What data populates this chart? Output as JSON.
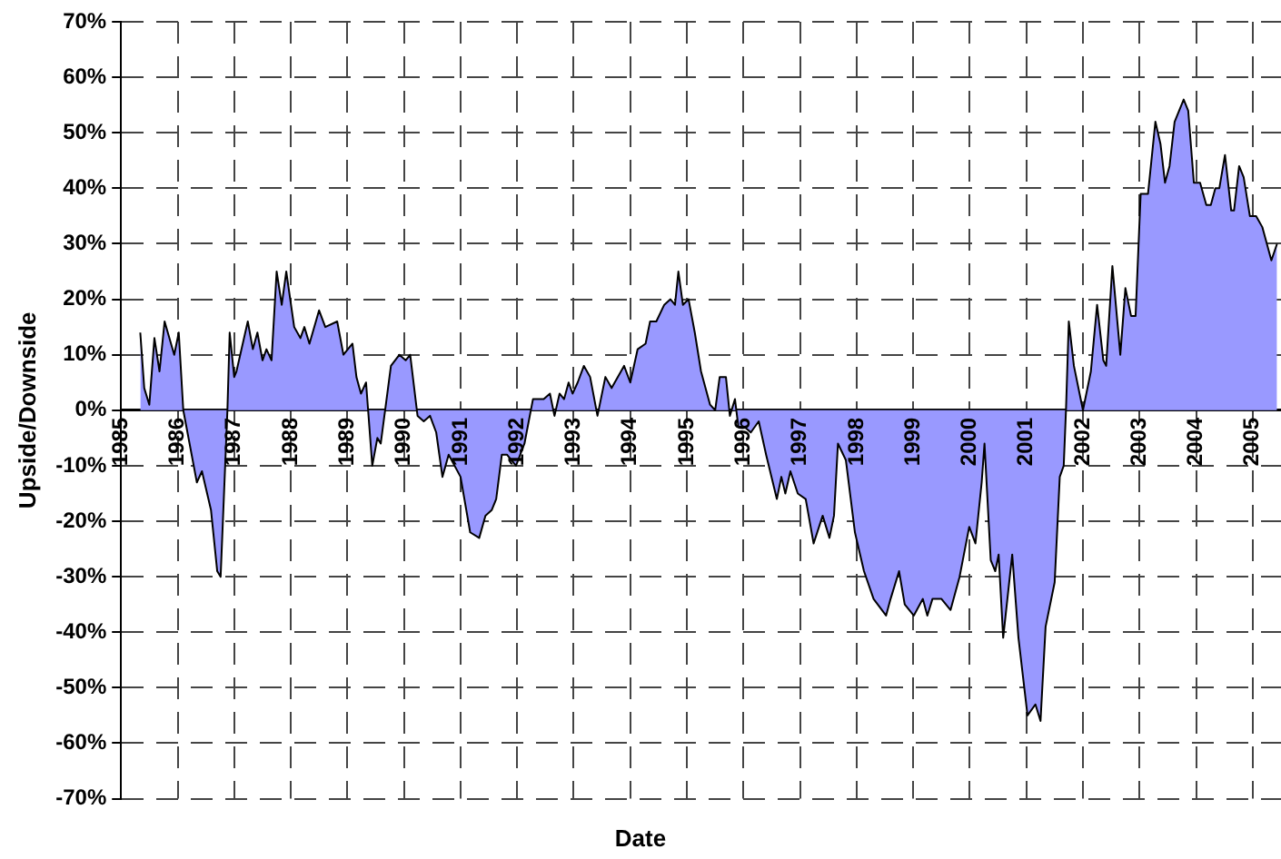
{
  "chart_data": {
    "type": "area",
    "xlabel": "Date",
    "ylabel": "Upside/Downside",
    "color": "#9999ff",
    "grid": true,
    "x": [
      1985.34,
      1985.41,
      1985.5,
      1985.59,
      1985.68,
      1985.77,
      1985.94,
      1986.02,
      1986.1,
      1986.34,
      1986.43,
      1986.59,
      1986.7,
      1986.76,
      1986.88,
      1986.92,
      1987,
      1987.04,
      1987.24,
      1987.33,
      1987.41,
      1987.5,
      1987.57,
      1987.66,
      1987.75,
      1987.84,
      1987.92,
      1988.06,
      1988.17,
      1988.24,
      1988.33,
      1988.5,
      1988.61,
      1988.82,
      1988.93,
      1989.09,
      1989.16,
      1989.24,
      1989.33,
      1989.44,
      1989.53,
      1989.59,
      1989.77,
      1989.92,
      1990.03,
      1990.11,
      1990.24,
      1990.35,
      1990.46,
      1990.57,
      1990.68,
      1990.79,
      1991,
      1991.17,
      1991.33,
      1991.44,
      1991.55,
      1991.63,
      1991.73,
      1991.82,
      1991.98,
      1992.13,
      1992.28,
      1992.36,
      1992.47,
      1992.58,
      1992.66,
      1992.75,
      1992.83,
      1992.91,
      1992.98,
      1993.07,
      1993.18,
      1993.29,
      1993.42,
      1993.56,
      1993.67,
      1993.89,
      1994,
      1994.13,
      1994.27,
      1994.35,
      1994.46,
      1994.6,
      1994.71,
      1994.79,
      1994.85,
      1994.93,
      1995.03,
      1995.14,
      1995.25,
      1995.41,
      1995.5,
      1995.58,
      1995.69,
      1995.76,
      1995.85,
      1995.91,
      1996.02,
      1996.13,
      1996.27,
      1996.4,
      1996.59,
      1996.67,
      1996.74,
      1996.83,
      1996.96,
      1997.1,
      1997.24,
      1997.4,
      1997.52,
      1997.6,
      1997.67,
      1997.81,
      1997.97,
      1998.13,
      1998.3,
      1998.52,
      1998.6,
      1998.75,
      1998.85,
      1999.01,
      1999.17,
      1999.25,
      1999.34,
      1999.5,
      1999.66,
      1999.82,
      1999.99,
      2000.1,
      2000.21,
      2000.26,
      2000.37,
      2000.45,
      2000.51,
      2000.59,
      2000.75,
      2000.86,
      2001.02,
      2001.16,
      2001.25,
      2001.34,
      2001.5,
      2001.59,
      2001.66,
      2001.7,
      2001.75,
      2001.84,
      2002,
      2002.14,
      2002.25,
      2002.36,
      2002.41,
      2002.52,
      2002.66,
      2002.75,
      2002.85,
      2002.93,
      2003.02,
      2003.15,
      2003.28,
      2003.37,
      2003.45,
      2003.53,
      2003.62,
      2003.78,
      2003.86,
      2003.96,
      2004.07,
      2004.18,
      2004.26,
      2004.34,
      2004.41,
      2004.51,
      2004.62,
      2004.67,
      2004.76,
      2004.84,
      2004.95,
      2005.06,
      2005.17,
      2005.33,
      2005.43
    ],
    "values": [
      14,
      4,
      1,
      13,
      7,
      16,
      10,
      14,
      0,
      -13,
      -11,
      -18,
      -29,
      -30,
      0,
      14,
      6,
      7,
      16,
      11,
      14,
      9,
      11,
      9,
      25,
      19,
      25,
      15,
      13,
      15,
      12,
      18,
      15,
      16,
      10,
      12,
      6,
      3,
      5,
      -10,
      -5,
      -6,
      8,
      10,
      9,
      10,
      -1,
      -2,
      -1,
      -4,
      -12,
      -8,
      -12,
      -22,
      -23,
      -19,
      -18,
      -16,
      -8,
      -8,
      -10,
      -6,
      2,
      2,
      2,
      3,
      -1,
      3,
      2,
      5,
      3,
      5,
      8,
      6,
      -1,
      6,
      4,
      8,
      5,
      11,
      12,
      16,
      16,
      19,
      20,
      19,
      25,
      19,
      20,
      14,
      7,
      1,
      0,
      6,
      6,
      -1,
      2,
      -3,
      -3,
      -4,
      -2,
      -8,
      -16,
      -12,
      -15,
      -11,
      -15,
      -16,
      -24,
      -19,
      -23,
      -19,
      -6,
      -9,
      -22,
      -29,
      -34,
      -37,
      -34,
      -29,
      -35,
      -37,
      -34,
      -37,
      -34,
      -34,
      -36,
      -30,
      -21,
      -24,
      -13,
      -6,
      -27,
      -29,
      -26,
      -41,
      -26,
      -41,
      -55,
      -53,
      -56,
      -39,
      -31,
      -12,
      -10,
      0,
      16,
      8,
      0,
      7,
      19,
      9,
      8,
      26,
      10,
      22,
      17,
      17,
      39,
      39,
      52,
      48,
      41,
      44,
      52,
      56,
      54,
      41,
      41,
      37,
      37,
      40,
      40,
      46,
      36,
      36,
      44,
      42,
      35,
      35,
      33,
      27,
      30
    ],
    "xlim": [
      1985,
      2005.5
    ],
    "xticks": [
      1985,
      1986,
      1987,
      1988,
      1989,
      1990,
      1991,
      1992,
      1993,
      1994,
      1995,
      1996,
      1997,
      1998,
      1999,
      2000,
      2001,
      2002,
      2003,
      2004,
      2005
    ],
    "ylim": [
      -70,
      70
    ],
    "yticks": [
      {
        "value": -70,
        "label": "-70%"
      },
      {
        "value": -60,
        "label": "-60%"
      },
      {
        "value": -50,
        "label": "-50%"
      },
      {
        "value": -40,
        "label": "-40%"
      },
      {
        "value": -30,
        "label": "-30%"
      },
      {
        "value": -20,
        "label": "-20%"
      },
      {
        "value": -10,
        "label": "-10%"
      },
      {
        "value": 0,
        "label": "0%"
      },
      {
        "value": 10,
        "label": "10%"
      },
      {
        "value": 20,
        "label": "20%"
      },
      {
        "value": 30,
        "label": "30%"
      },
      {
        "value": 40,
        "label": "40%"
      },
      {
        "value": 50,
        "label": "50%"
      },
      {
        "value": 60,
        "label": "60%"
      },
      {
        "value": 70,
        "label": "70%"
      }
    ]
  }
}
